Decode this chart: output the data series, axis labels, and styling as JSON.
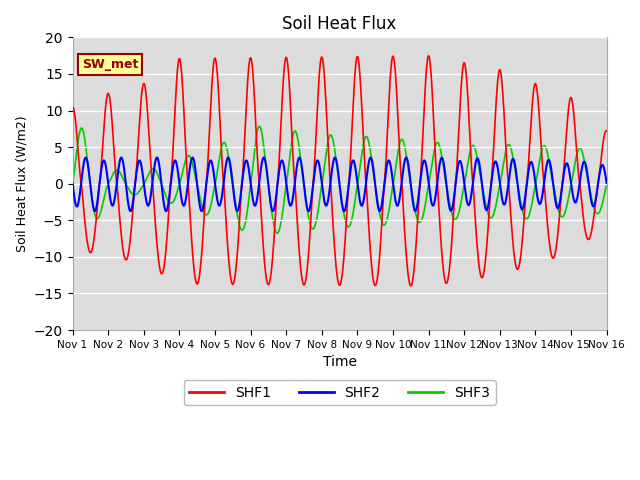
{
  "title": "Soil Heat Flux",
  "xlabel": "Time",
  "ylabel": "Soil Heat Flux (W/m2)",
  "ylim": [
    -20,
    20
  ],
  "xlim": [
    0,
    15
  ],
  "yticks": [
    -20,
    -15,
    -10,
    -5,
    0,
    5,
    10,
    15,
    20
  ],
  "xtick_labels": [
    "Nov 1",
    "Nov 2",
    "Nov 3",
    "Nov 4",
    "Nov 5",
    "Nov 6",
    "Nov 7",
    "Nov 8",
    "Nov 9",
    "Nov 10",
    "Nov 11",
    "Nov 12",
    "Nov 13",
    "Nov 14",
    "Nov 15",
    "Nov 16"
  ],
  "colors": {
    "SHF1": "#ff0000",
    "SHF2": "#0000ff",
    "SHF3": "#00cc00"
  },
  "plot_bg": "#dcdcdc",
  "fig_bg": "#ffffff",
  "annotation_text": "SW_met",
  "annotation_bg": "#ffff99",
  "annotation_border": "#990000",
  "n_days": 15,
  "points_per_day": 144
}
